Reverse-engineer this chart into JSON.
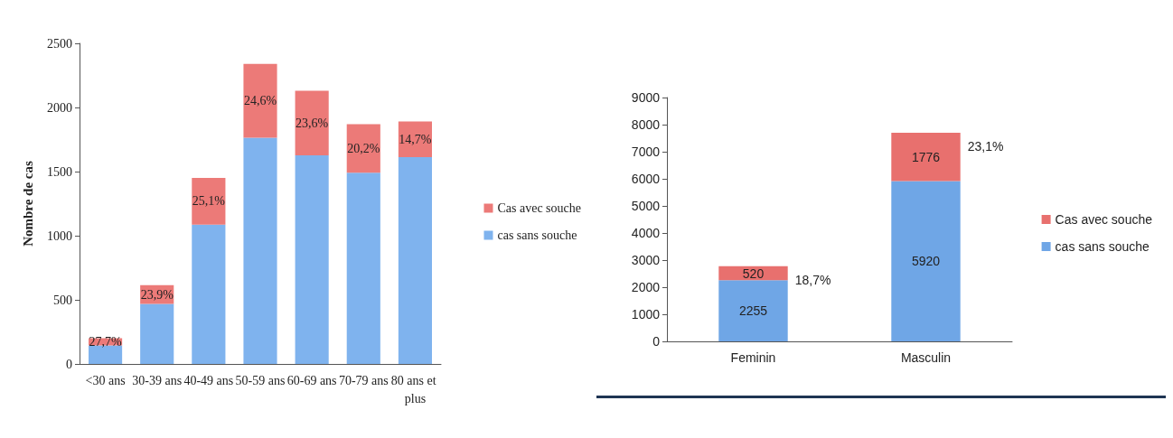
{
  "chart_data": [
    {
      "type": "bar",
      "stacked": true,
      "ylabel": "Nombre de cas",
      "categories": [
        "<30 ans",
        "30-39 ans",
        "40-49 ans",
        "50-59 ans",
        "60-69 ans",
        "70-79 ans",
        "80 ans et plus"
      ],
      "series": [
        {
          "name": "cas sans souche",
          "color": "#7fb3ee",
          "values": [
            145,
            468,
            1086,
            1764,
            1627,
            1492,
            1612
          ]
        },
        {
          "name": "Cas avec souche",
          "color": "#ec7a78",
          "values": [
            55,
            147,
            364,
            576,
            503,
            378,
            278
          ]
        }
      ],
      "annotations": [
        "27,7%",
        "23,9%",
        "25,1%",
        "24,6%",
        "23,6%",
        "20,2%",
        "14,7%"
      ],
      "ylim": [
        0,
        2500
      ],
      "yticks": [
        0,
        500,
        1000,
        1500,
        2000,
        2500
      ],
      "grid": false,
      "legend": "right"
    },
    {
      "type": "bar",
      "stacked": true,
      "data_labels": true,
      "categories": [
        "Feminin",
        "Masculin"
      ],
      "series": [
        {
          "name": "cas sans souche",
          "color": "#6fa6e6",
          "values": [
            2255,
            5920
          ]
        },
        {
          "name": "Cas avec souche",
          "color": "#e8706e",
          "values": [
            520,
            1776
          ]
        }
      ],
      "annotations": [
        "18,7%",
        "23,1%"
      ],
      "ylim": [
        0,
        9000
      ],
      "yticks": [
        0,
        1000,
        2000,
        3000,
        4000,
        5000,
        6000,
        7000,
        8000,
        9000
      ],
      "grid": false,
      "legend": "right"
    }
  ]
}
